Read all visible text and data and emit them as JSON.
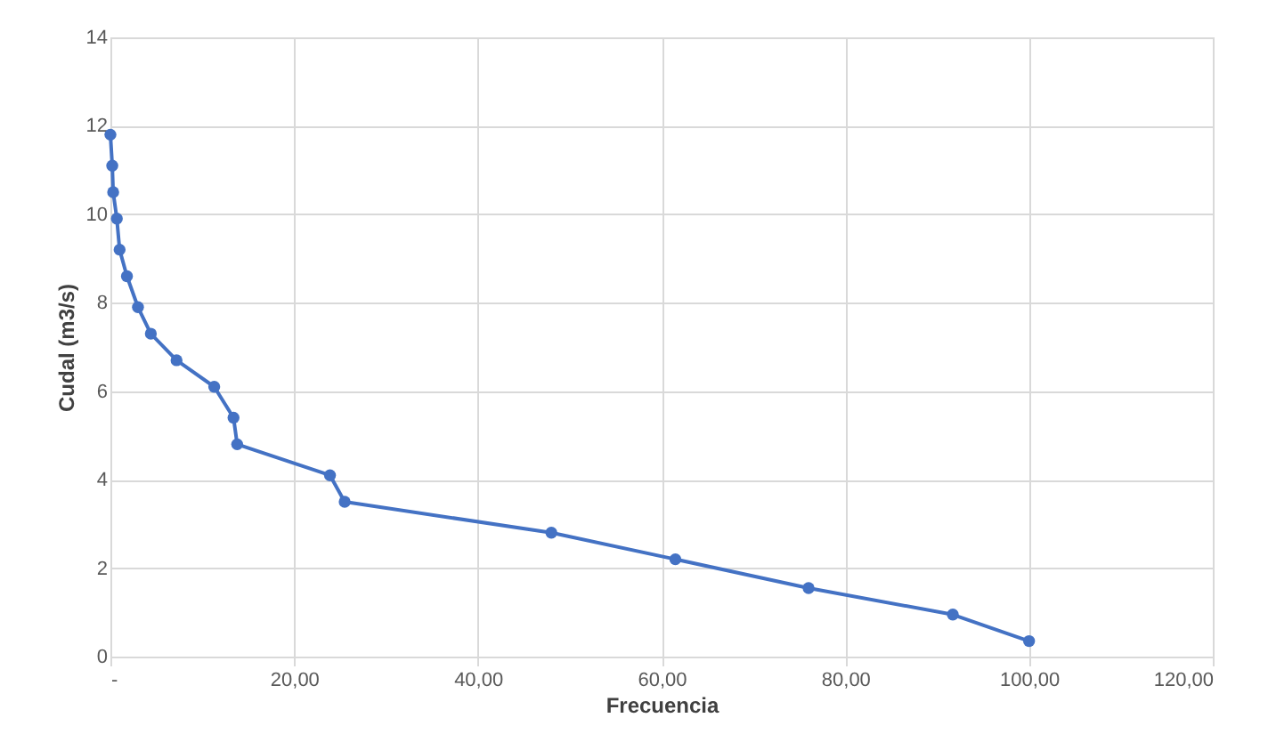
{
  "chart_data": {
    "type": "line",
    "xlabel": "Frecuencia",
    "ylabel": "Cudal (m3/s)",
    "x": [
      0,
      0.2,
      0.3,
      0.7,
      1,
      1.8,
      3,
      4.4,
      7.2,
      11.3,
      13.4,
      13.8,
      23.9,
      25.5,
      48,
      61.5,
      76,
      91.7,
      100
    ],
    "series": [
      {
        "color": "#4472c4",
        "values": [
          11.8,
          11.1,
          10.5,
          9.9,
          9.2,
          8.6,
          7.9,
          7.3,
          6.7,
          6.1,
          5.4,
          4.8,
          4.1,
          3.5,
          2.8,
          2.2,
          1.55,
          0.95,
          0.35
        ]
      }
    ],
    "xlim": [
      0,
      120
    ],
    "ylim": [
      0,
      14
    ],
    "xticks": [
      {
        "value": 0,
        "label": "-"
      },
      {
        "value": 20,
        "label": "20,00"
      },
      {
        "value": 40,
        "label": "40,00"
      },
      {
        "value": 60,
        "label": "60,00"
      },
      {
        "value": 80,
        "label": "80,00"
      },
      {
        "value": 100,
        "label": "100,00"
      },
      {
        "value": 120,
        "label": "120,00"
      }
    ],
    "yticks": [
      0,
      2,
      4,
      6,
      8,
      10,
      12,
      14
    ],
    "grid": true,
    "marker": "circle",
    "line_style": "solid"
  }
}
